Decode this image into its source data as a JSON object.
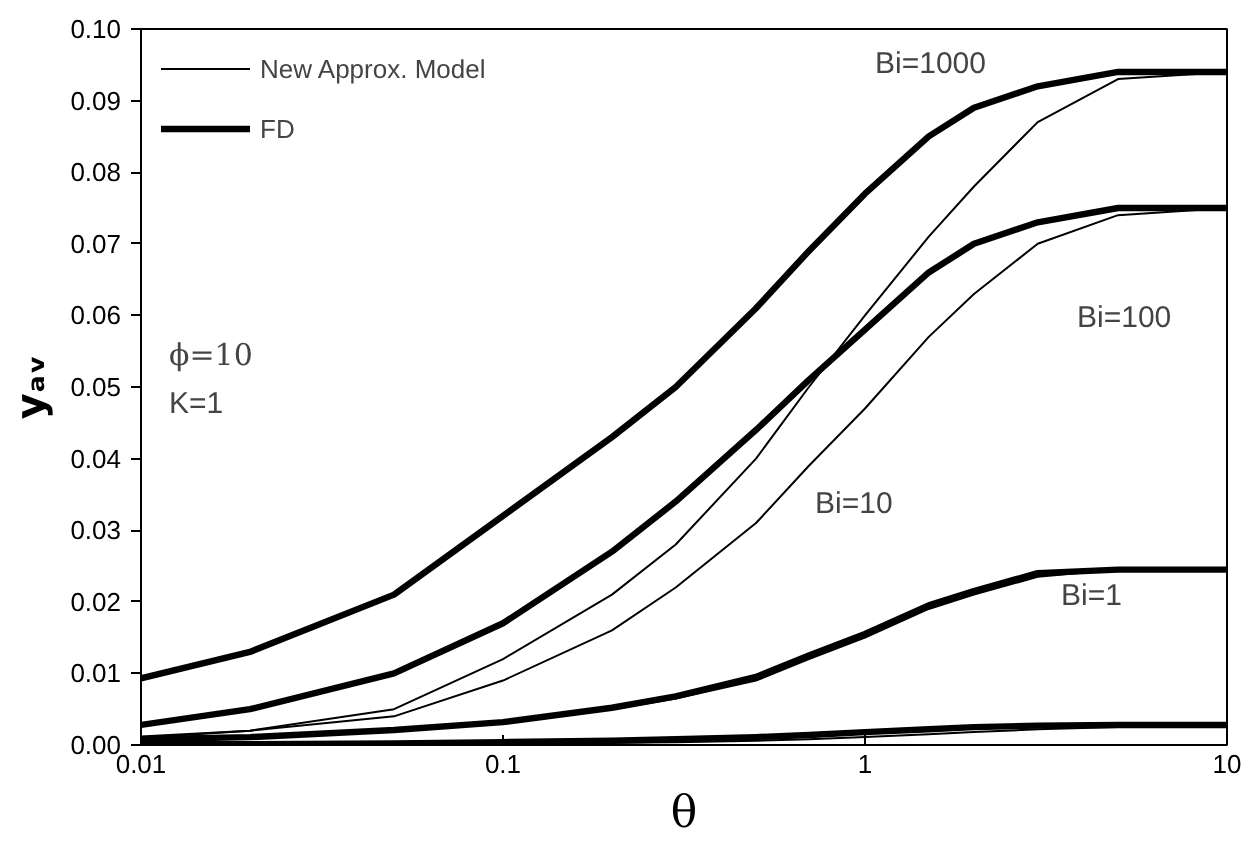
{
  "chart_data": {
    "type": "line",
    "xlabel": "θ",
    "ylabel": "yₐᵥ",
    "log": "x",
    "grid": false,
    "legend": "top left",
    "marker": "none",
    "line_style": "solid",
    "x": [
      0.01,
      0.02,
      0.05,
      0.1,
      0.2,
      0.3,
      0.5,
      0.7,
      1,
      1.5,
      2,
      3,
      5,
      10
    ],
    "xlim": [
      0.01,
      10
    ],
    "xticks": [
      0.01,
      0.1,
      1,
      10
    ],
    "ylim": [
      0,
      0.1
    ],
    "yticks": [
      {
        "value": 0,
        "label": "0.00"
      },
      {
        "value": 0.01,
        "label": "0.01"
      },
      {
        "value": 0.02,
        "label": "0.02"
      },
      {
        "value": 0.03,
        "label": "0.03"
      },
      {
        "value": 0.04,
        "label": "0.04"
      },
      {
        "value": 0.05,
        "label": "0.05"
      },
      {
        "value": 0.06,
        "label": "0.06"
      },
      {
        "value": 0.07,
        "label": "0.07"
      },
      {
        "value": 0.08,
        "label": "0.08"
      },
      {
        "value": 0.09,
        "label": "0.09"
      },
      {
        "value": 0.1,
        "label": "0.10"
      }
    ],
    "series": [
      {
        "name": "New Approx. Model",
        "color": "#000000",
        "values": [
          0.001,
          0.002,
          0.005,
          0.012,
          0.021,
          0.028,
          0.04,
          0.05,
          0.06,
          0.071,
          0.078,
          0.087,
          0.093,
          0.094
        ]
      },
      {
        "name": "FD",
        "color": "#000000",
        "values": [
          0.0093,
          0.013,
          0.021,
          0.032,
          0.043,
          0.05,
          0.061,
          0.069,
          0.077,
          0.085,
          0.089,
          0.092,
          0.094,
          0.094
        ]
      },
      {
        "color": "#000000",
        "values": [
          0.0012,
          0.002,
          0.004,
          0.009,
          0.016,
          0.022,
          0.031,
          0.039,
          0.047,
          0.057,
          0.063,
          0.07,
          0.074,
          0.075
        ]
      },
      {
        "color": "#000000",
        "values": [
          0.0028,
          0.005,
          0.01,
          0.017,
          0.027,
          0.034,
          0.044,
          0.051,
          0.058,
          0.066,
          0.07,
          0.073,
          0.075,
          0.075
        ]
      },
      {
        "color": "#000000",
        "values": [
          0.0008,
          0.001,
          0.002,
          0.003,
          0.005,
          0.0065,
          0.009,
          0.012,
          0.015,
          0.019,
          0.021,
          0.0235,
          0.0245,
          0.0245
        ]
      },
      {
        "color": "#000000",
        "values": [
          0.0008,
          0.0011,
          0.0021,
          0.0032,
          0.0052,
          0.0068,
          0.0095,
          0.0125,
          0.0155,
          0.0195,
          0.0215,
          0.024,
          0.0245,
          0.0245
        ]
      },
      {
        "color": "#000000",
        "values": [
          0.0001,
          0.0001,
          0.0001,
          0.0002,
          0.0003,
          0.0004,
          0.0006,
          0.0008,
          0.0011,
          0.0015,
          0.0018,
          0.0022,
          0.0025,
          0.0026
        ]
      },
      {
        "color": "#000000",
        "values": [
          0.0001,
          0.0001,
          0.0002,
          0.0004,
          0.0006,
          0.0008,
          0.0011,
          0.0014,
          0.0018,
          0.0022,
          0.0025,
          0.0027,
          0.0028,
          0.0028
        ]
      }
    ],
    "annotations": [
      "Bi=1000",
      "Bi=100",
      "Bi=10",
      "Bi=1",
      "ϕ=10",
      "K=1"
    ]
  }
}
